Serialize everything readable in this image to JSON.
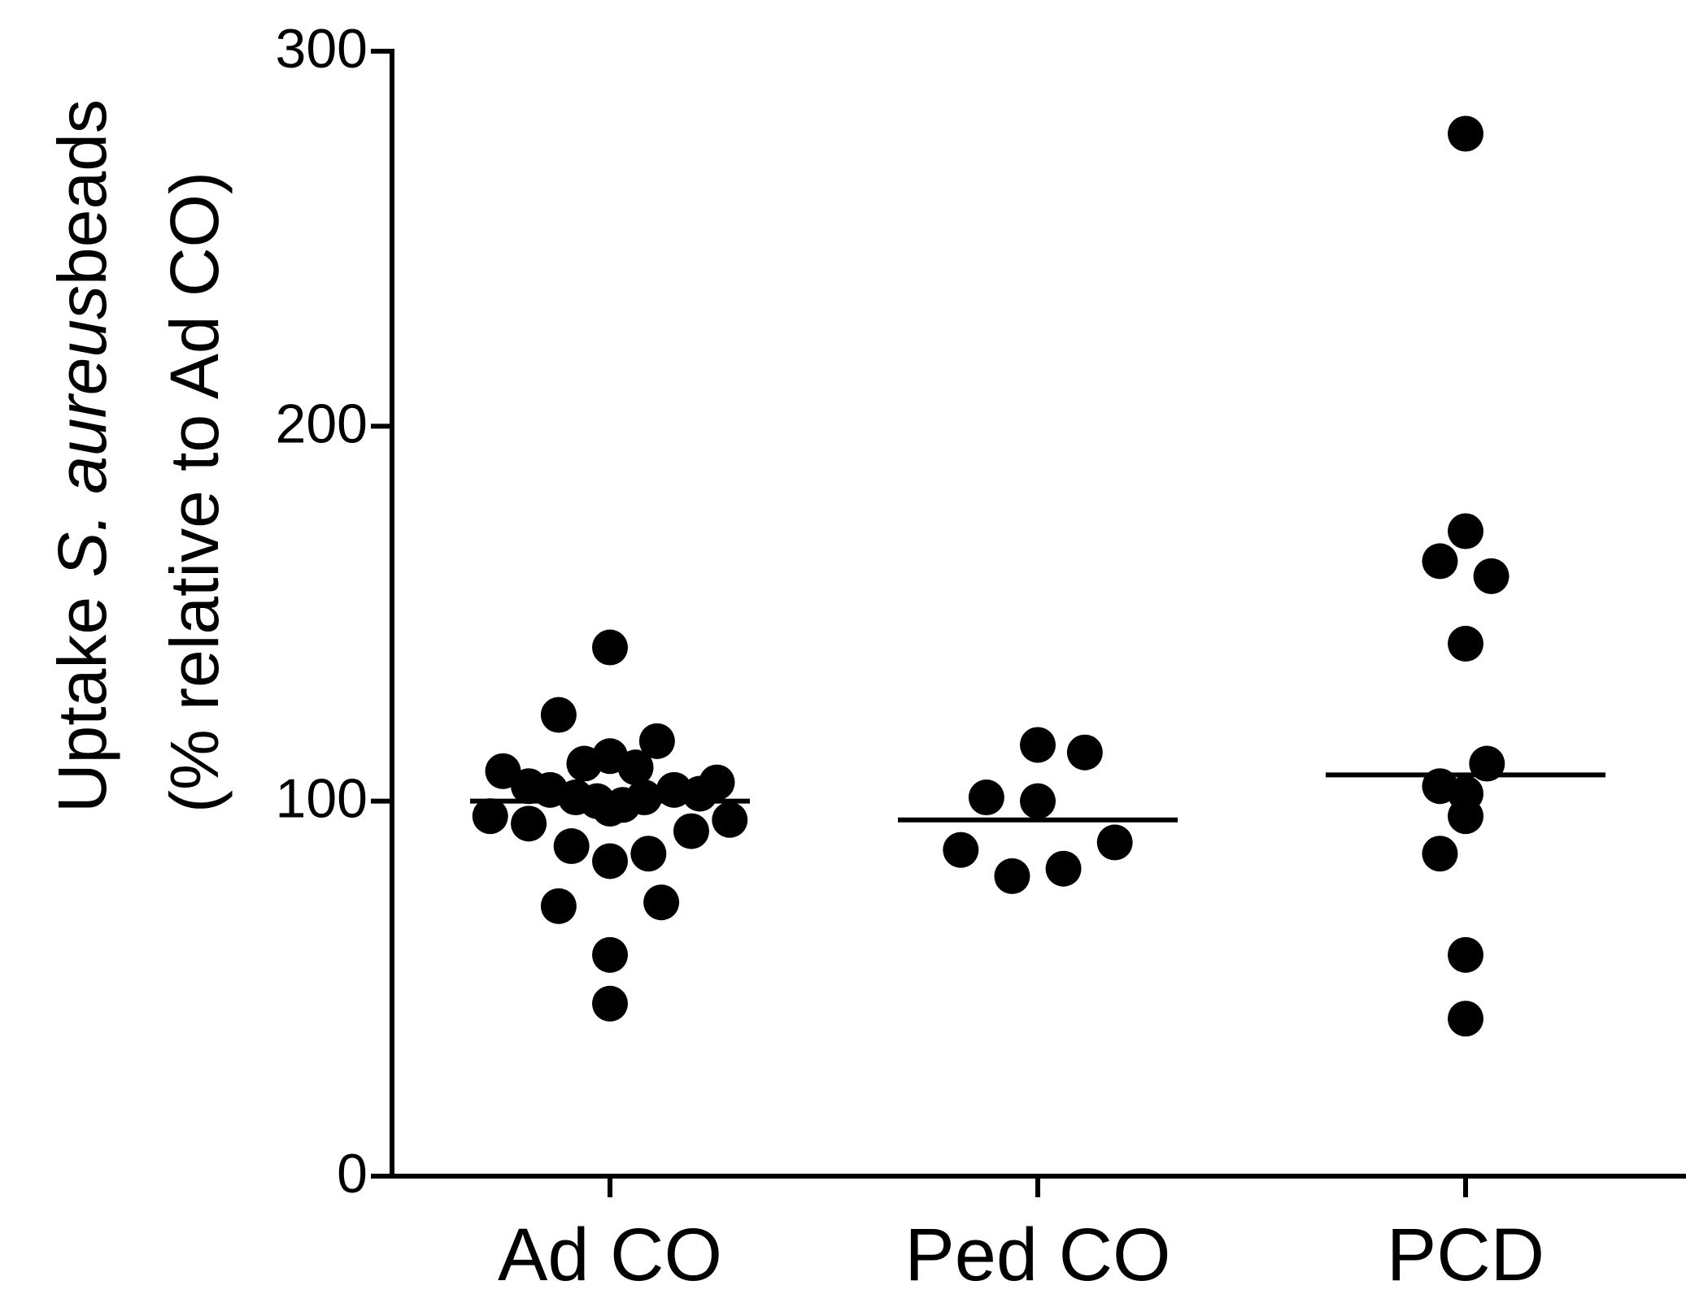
{
  "chart_data": {
    "type": "scatter",
    "ylabel": {
      "line1_pre": "Uptake ",
      "line1_species": "S. aureus",
      "line1_post": "beads",
      "line2": "(% relative to Ad CO)"
    },
    "ylim": [
      0,
      300
    ],
    "yticks": [
      "0",
      "100",
      "200",
      "300"
    ],
    "grid": false,
    "legend": "none",
    "color": "#000000",
    "categories": [
      "Ad CO",
      "Ped CO",
      "PCD"
    ],
    "groups": [
      {
        "category": "Ad CO",
        "median": 100,
        "points": [
          {
            "dx": 0.0,
            "y": 141
          },
          {
            "dx": -0.12,
            "y": 123
          },
          {
            "dx": 0.11,
            "y": 116
          },
          {
            "dx": 0.0,
            "y": 112
          },
          {
            "dx": -0.06,
            "y": 110
          },
          {
            "dx": 0.06,
            "y": 109
          },
          {
            "dx": -0.25,
            "y": 108
          },
          {
            "dx": 0.25,
            "y": 105
          },
          {
            "dx": -0.19,
            "y": 104
          },
          {
            "dx": -0.14,
            "y": 103
          },
          {
            "dx": 0.15,
            "y": 103
          },
          {
            "dx": 0.21,
            "y": 102
          },
          {
            "dx": -0.08,
            "y": 101
          },
          {
            "dx": 0.08,
            "y": 101
          },
          {
            "dx": -0.03,
            "y": 100
          },
          {
            "dx": 0.03,
            "y": 99
          },
          {
            "dx": 0.0,
            "y": 98
          },
          {
            "dx": -0.28,
            "y": 96
          },
          {
            "dx": 0.28,
            "y": 95
          },
          {
            "dx": -0.19,
            "y": 94
          },
          {
            "dx": 0.19,
            "y": 92
          },
          {
            "dx": -0.09,
            "y": 88
          },
          {
            "dx": 0.09,
            "y": 86
          },
          {
            "dx": 0.0,
            "y": 84
          },
          {
            "dx": -0.12,
            "y": 72
          },
          {
            "dx": 0.12,
            "y": 73
          },
          {
            "dx": 0.0,
            "y": 59
          },
          {
            "dx": 0.0,
            "y": 46
          }
        ]
      },
      {
        "category": "Ped CO",
        "median": 95,
        "points": [
          {
            "dx": 0.0,
            "y": 115
          },
          {
            "dx": 0.11,
            "y": 113
          },
          {
            "dx": -0.12,
            "y": 101
          },
          {
            "dx": 0.0,
            "y": 100
          },
          {
            "dx": 0.18,
            "y": 89
          },
          {
            "dx": -0.18,
            "y": 87
          },
          {
            "dx": 0.06,
            "y": 82
          },
          {
            "dx": -0.06,
            "y": 80
          }
        ]
      },
      {
        "category": "PCD",
        "median": 107,
        "points": [
          {
            "dx": 0.0,
            "y": 278
          },
          {
            "dx": 0.0,
            "y": 172
          },
          {
            "dx": -0.06,
            "y": 164
          },
          {
            "dx": 0.06,
            "y": 160
          },
          {
            "dx": 0.0,
            "y": 142
          },
          {
            "dx": 0.05,
            "y": 110
          },
          {
            "dx": -0.06,
            "y": 104
          },
          {
            "dx": 0.0,
            "y": 102
          },
          {
            "dx": 0.0,
            "y": 96
          },
          {
            "dx": -0.06,
            "y": 86
          },
          {
            "dx": 0.0,
            "y": 59
          },
          {
            "dx": 0.0,
            "y": 42
          }
        ]
      }
    ]
  }
}
